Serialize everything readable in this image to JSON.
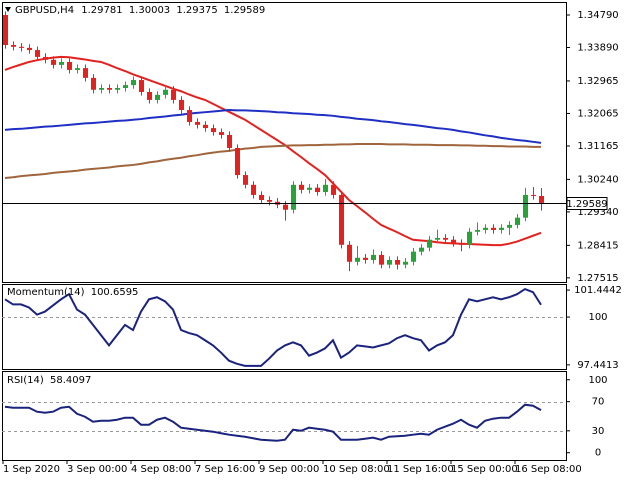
{
  "chart_data": [
    {
      "type": "candlestick",
      "symbol": "GBPUSD,H4",
      "categories": [
        "1 Sep 2020",
        null,
        null,
        null,
        null,
        null,
        null,
        null,
        "3 Sep 00:00",
        null,
        null,
        null,
        null,
        null,
        null,
        null,
        "4 Sep 08:00",
        null,
        null,
        null,
        null,
        null,
        null,
        null,
        "7 Sep 16:00",
        null,
        null,
        null,
        null,
        null,
        null,
        null,
        "9 Sep 00:00",
        null,
        null,
        null,
        null,
        null,
        null,
        null,
        "10 Sep 08:00",
        null,
        null,
        null,
        null,
        null,
        null,
        null,
        "11 Sep 16:00",
        null,
        null,
        null,
        null,
        null,
        null,
        null,
        "15 Sep 00:00",
        null,
        null,
        null,
        null,
        null,
        null,
        null,
        "16 Sep 08:00",
        null,
        null,
        null
      ],
      "candles": {
        "up_color": "#27a33a",
        "down_color": "#e3221f",
        "open": [
          1.3479,
          1.3396,
          1.3391,
          1.3388,
          1.3382,
          1.3363,
          1.3355,
          1.3341,
          1.3349,
          1.3327,
          1.3332,
          1.3305,
          1.3272,
          1.3277,
          1.3272,
          1.3277,
          1.3285,
          1.3299,
          1.3266,
          1.3244,
          1.3258,
          1.3272,
          1.3244,
          1.3216,
          1.3183,
          1.3175,
          1.3166,
          1.3155,
          1.3147,
          1.3111,
          1.3036,
          1.3009,
          1.2981,
          1.2967,
          1.2962,
          1.2954,
          1.294,
          1.3009,
          1.2995,
          1.3001,
          1.2989,
          1.3009,
          1.2981,
          1.2843,
          1.2796,
          1.2807,
          1.2801,
          1.2815,
          1.2788,
          1.2801,
          1.2788,
          1.2796,
          1.2824,
          1.2835,
          1.2857,
          1.2862,
          1.2857,
          1.2848,
          1.2843,
          1.2879,
          1.2884,
          1.289,
          1.2884,
          1.289,
          1.2898,
          1.2918,
          1.2981,
          1.29781
        ],
        "high": [
          1.3489,
          1.3406,
          1.3401,
          1.3398,
          1.3392,
          1.3373,
          1.3365,
          1.3359,
          1.3359,
          1.3342,
          1.3342,
          1.3315,
          1.3287,
          1.3287,
          1.3287,
          1.3295,
          1.3309,
          1.3309,
          1.3276,
          1.3268,
          1.3282,
          1.3282,
          1.3254,
          1.3226,
          1.3193,
          1.3185,
          1.3176,
          1.3165,
          1.3157,
          1.3121,
          1.3046,
          1.3019,
          1.2991,
          1.2977,
          1.2972,
          1.2964,
          1.3019,
          1.3019,
          1.3011,
          1.3011,
          1.3025,
          1.3019,
          1.2991,
          1.2853,
          1.284,
          1.2817,
          1.283,
          1.2825,
          1.2811,
          1.2811,
          1.2806,
          1.2834,
          1.2845,
          1.2867,
          1.2885,
          1.2872,
          1.2867,
          1.2858,
          1.2889,
          1.2905,
          1.29,
          1.29,
          1.29,
          1.2908,
          1.2928,
          1.3001,
          1.3003,
          1.30003
        ],
        "low": [
          1.3386,
          1.3381,
          1.3378,
          1.3372,
          1.3353,
          1.3345,
          1.3331,
          1.3331,
          1.3317,
          1.3317,
          1.3295,
          1.3262,
          1.3262,
          1.3262,
          1.3262,
          1.3267,
          1.3275,
          1.3256,
          1.3234,
          1.3234,
          1.3248,
          1.3234,
          1.3206,
          1.3173,
          1.3165,
          1.3156,
          1.3145,
          1.3137,
          1.3101,
          1.3026,
          1.2999,
          1.2971,
          1.2957,
          1.2952,
          1.2944,
          1.291,
          1.293,
          1.2985,
          1.2985,
          1.2979,
          1.2979,
          1.2971,
          1.2833,
          1.277,
          1.2786,
          1.2791,
          1.2791,
          1.2778,
          1.2778,
          1.2775,
          1.2778,
          1.2786,
          1.2814,
          1.2825,
          1.2847,
          1.2847,
          1.2838,
          1.2825,
          1.2833,
          1.2869,
          1.2874,
          1.2874,
          1.2874,
          1.287,
          1.2888,
          1.2908,
          1.2968,
          1.29375
        ],
        "close": [
          1.3396,
          1.3391,
          1.3388,
          1.3382,
          1.3363,
          1.3355,
          1.3341,
          1.3349,
          1.3327,
          1.3332,
          1.3305,
          1.3272,
          1.3277,
          1.3272,
          1.3277,
          1.3285,
          1.3299,
          1.3266,
          1.3244,
          1.3258,
          1.3272,
          1.3244,
          1.3216,
          1.3183,
          1.3175,
          1.3166,
          1.3155,
          1.3147,
          1.3111,
          1.3036,
          1.3009,
          1.2981,
          1.2967,
          1.2962,
          1.2954,
          1.294,
          1.3009,
          1.2995,
          1.3001,
          1.2989,
          1.3009,
          1.2981,
          1.2843,
          1.2796,
          1.2807,
          1.2801,
          1.2815,
          1.2788,
          1.2801,
          1.2788,
          1.2796,
          1.2824,
          1.2835,
          1.2857,
          1.2862,
          1.2857,
          1.2848,
          1.2843,
          1.2879,
          1.2884,
          1.289,
          1.2884,
          1.289,
          1.2898,
          1.2918,
          1.2981,
          1.29781,
          1.29589
        ]
      },
      "series": [
        {
          "color": "#e3221f",
          "values": [
            1.3327,
            1.3335,
            1.3342,
            1.3349,
            1.3354,
            1.3358,
            1.3361,
            1.3363,
            1.3362,
            1.3359,
            1.3356,
            1.3352,
            1.3349,
            1.3341,
            1.3332,
            1.3324,
            1.3315,
            1.3307,
            1.3299,
            1.3291,
            1.3283,
            1.3275,
            1.3268,
            1.3259,
            1.3251,
            1.3244,
            1.3233,
            1.3222,
            1.3211,
            1.32,
            1.3189,
            1.3175,
            1.3161,
            1.3147,
            1.3133,
            1.3119,
            1.3102,
            1.3086,
            1.3069,
            1.3053,
            1.3036,
            1.3013,
            1.299,
            1.2967,
            1.295,
            1.2933,
            1.2915,
            1.2898,
            1.2888,
            1.2878,
            1.2867,
            1.2857,
            1.2855,
            1.2853,
            1.285,
            1.2848,
            1.2847,
            1.2846,
            1.2845,
            1.2844,
            1.2843,
            1.2842,
            1.2842,
            1.2846,
            1.2852,
            1.286,
            1.2868,
            1.2876
          ]
        },
        {
          "color": "#1f2fc4",
          "values": [
            1.3161,
            1.3163,
            1.3164,
            1.3166,
            1.3168,
            1.317,
            1.3171,
            1.3173,
            1.3175,
            1.3177,
            1.3179,
            1.318,
            1.3182,
            1.3184,
            1.3186,
            1.3187,
            1.3189,
            1.3191,
            1.3194,
            1.3196,
            1.3198,
            1.3201,
            1.3203,
            1.3206,
            1.3208,
            1.321,
            1.3212,
            1.3214,
            1.3216,
            1.3215,
            1.3215,
            1.3214,
            1.3213,
            1.3212,
            1.321,
            1.3209,
            1.3207,
            1.3206,
            1.3205,
            1.3203,
            1.3202,
            1.32,
            1.3197,
            1.3195,
            1.3192,
            1.319,
            1.3188,
            1.3185,
            1.3183,
            1.318,
            1.3177,
            1.3175,
            1.3172,
            1.3169,
            1.3166,
            1.3164,
            1.3161,
            1.3157,
            1.3154,
            1.315,
            1.3146,
            1.3143,
            1.3139,
            1.3136,
            1.3133,
            1.3131,
            1.3128,
            1.3125
          ]
        },
        {
          "color": "#a0653c",
          "values": [
            1.3028,
            1.303,
            1.3033,
            1.3035,
            1.3037,
            1.3039,
            1.3042,
            1.3044,
            1.3046,
            1.3048,
            1.3051,
            1.3053,
            1.3055,
            1.3057,
            1.306,
            1.3062,
            1.3064,
            1.3067,
            1.3071,
            1.3074,
            1.3078,
            1.3081,
            1.3084,
            1.3088,
            1.3091,
            1.3095,
            1.3098,
            1.3101,
            1.3103,
            1.3106,
            1.3109,
            1.3111,
            1.3114,
            1.3115,
            1.3116,
            1.3117,
            1.3118,
            1.3118,
            1.3119,
            1.3119,
            1.312,
            1.312,
            1.3121,
            1.3121,
            1.3122,
            1.3122,
            1.3122,
            1.3122,
            1.3121,
            1.3121,
            1.3121,
            1.312,
            1.312,
            1.312,
            1.3119,
            1.3119,
            1.3119,
            1.3118,
            1.3118,
            1.3117,
            1.3117,
            1.3116,
            1.3116,
            1.3115,
            1.3115,
            1.3115,
            1.3114,
            1.3114
          ]
        }
      ],
      "ylim": [
        1.274,
        1.3515
      ],
      "yticks": [
        {
          "value": 1.3479,
          "label": "1.34790"
        },
        {
          "value": 1.3389,
          "label": "1.33890"
        },
        1.32965,
        1.32065,
        1.31165,
        {
          "value": 1.3024,
          "label": "1.30240"
        },
        {
          "value": 1.2934,
          "label": "1.29340"
        },
        1.28415,
        1.27515
      ]
    },
    {
      "type": "line",
      "title": "Momentum(14)",
      "series": [
        {
          "color": "#1a237e",
          "values": [
            100.951,
            100.677,
            100.677,
            100.512,
            100.129,
            100.293,
            100.622,
            100.951,
            101.225,
            100.403,
            100.129,
            99.58,
            99.032,
            98.484,
            99.032,
            99.58,
            99.306,
            100.293,
            100.951,
            101.061,
            100.841,
            100.403,
            99.306,
            99.142,
            99.032,
            98.758,
            98.484,
            98.1,
            97.662,
            97.497,
            97.388,
            97.388,
            97.388,
            97.771,
            98.21,
            98.484,
            98.648,
            98.484,
            97.936,
            98.1,
            98.32,
            98.758,
            97.826,
            98.1,
            98.484,
            98.429,
            98.374,
            98.484,
            98.594,
            98.868,
            99.032,
            98.868,
            98.758,
            98.21,
            98.484,
            98.648,
            99.032,
            100.129,
            100.951,
            100.841,
            100.951,
            101.061,
            100.951,
            101.061,
            101.225,
            101.499,
            101.335,
            100.6595
          ]
        }
      ],
      "ylim": [
        97.22,
        101.77
      ],
      "yticks": [
        101.4442,
        100,
        97.4413
      ],
      "levels": [
        100
      ]
    },
    {
      "type": "line",
      "title": "RSI(14)",
      "series": [
        {
          "color": "#1a237e",
          "values": [
            63.0,
            61.6,
            61.6,
            61.6,
            56.2,
            54.8,
            56.2,
            61.6,
            63.0,
            53.4,
            49.3,
            42.5,
            43.8,
            43.8,
            45.2,
            48.0,
            48.0,
            38.4,
            38.4,
            45.2,
            48.0,
            42.5,
            34.3,
            32.9,
            31.5,
            30.1,
            28.8,
            26.7,
            24.7,
            23.3,
            21.9,
            19.8,
            17.8,
            17.1,
            16.4,
            17.8,
            31.5,
            30.1,
            34.3,
            32.9,
            31.5,
            28.8,
            17.8,
            17.8,
            17.8,
            19.2,
            20.6,
            17.8,
            21.9,
            22.6,
            23.3,
            24.7,
            26.0,
            24.7,
            31.5,
            35.6,
            39.7,
            45.2,
            38.4,
            34.3,
            43.8,
            46.6,
            48.0,
            48.0,
            56.2,
            65.8,
            64.4,
            58.4097
          ]
        }
      ],
      "ylim": [
        -10,
        112
      ],
      "yticks": [
        100,
        70,
        30,
        0
      ],
      "levels": [
        70,
        30
      ]
    }
  ]
}
